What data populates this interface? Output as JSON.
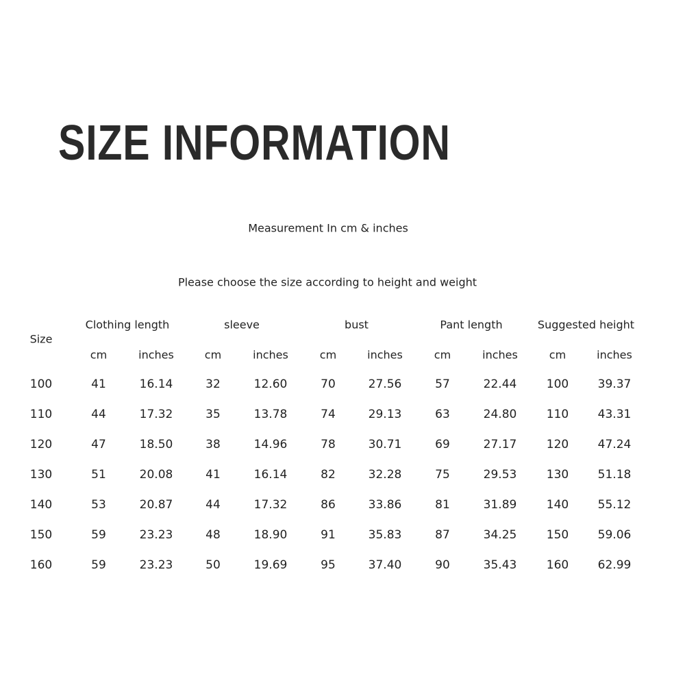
{
  "title": "SIZE INFORMATION",
  "measurement_note": "Measurement In cm & inches",
  "instruction": "Please choose the size according to height and weight",
  "table": {
    "size_header": "Size",
    "groups": [
      "Clothing length",
      "sleeve",
      "bust",
      "Pant length",
      "Suggested height"
    ],
    "units": [
      "cm",
      "inches"
    ],
    "rows": [
      [
        "100",
        "41",
        "16.14",
        "32",
        "12.60",
        "70",
        "27.56",
        "57",
        "22.44",
        "100",
        "39.37"
      ],
      [
        "110",
        "44",
        "17.32",
        "35",
        "13.78",
        "74",
        "29.13",
        "63",
        "24.80",
        "110",
        "43.31"
      ],
      [
        "120",
        "47",
        "18.50",
        "38",
        "14.96",
        "78",
        "30.71",
        "69",
        "27.17",
        "120",
        "47.24"
      ],
      [
        "130",
        "51",
        "20.08",
        "41",
        "16.14",
        "82",
        "32.28",
        "75",
        "29.53",
        "130",
        "51.18"
      ],
      [
        "140",
        "53",
        "20.87",
        "44",
        "17.32",
        "86",
        "33.86",
        "81",
        "31.89",
        "140",
        "55.12"
      ],
      [
        "150",
        "59",
        "23.23",
        "48",
        "18.90",
        "91",
        "35.83",
        "87",
        "34.25",
        "150",
        "59.06"
      ],
      [
        "160",
        "59",
        "23.23",
        "50",
        "19.69",
        "95",
        "37.40",
        "90",
        "35.43",
        "160",
        "62.99"
      ]
    ]
  }
}
